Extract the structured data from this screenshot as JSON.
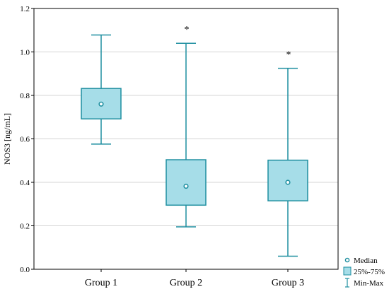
{
  "chart_data": {
    "type": "box",
    "ylabel": "NOS3 [ng/mL]",
    "xlabel": "",
    "title": "",
    "ylim": [
      0.0,
      1.2
    ],
    "y_ticks": [
      "0.0",
      "0.2",
      "0.4",
      "0.6",
      "0.8",
      "1.0",
      "1.2"
    ],
    "y_tick_values": [
      0.0,
      0.2,
      0.4,
      0.6,
      0.8,
      1.0,
      1.2
    ],
    "grid": "horizontal",
    "categories": [
      "Group 1",
      "Group 2",
      "Group 3"
    ],
    "boxes": [
      {
        "category": "Group 1",
        "min": 0.576,
        "q1": 0.692,
        "median": 0.76,
        "q3": 0.832,
        "max": 1.078,
        "annotation": ""
      },
      {
        "category": "Group 2",
        "min": 0.195,
        "q1": 0.295,
        "median": 0.382,
        "q3": 0.504,
        "max": 1.04,
        "annotation": "*"
      },
      {
        "category": "Group 3",
        "min": 0.06,
        "q1": 0.315,
        "median": 0.4,
        "q3": 0.502,
        "max": 0.925,
        "annotation": "*"
      }
    ],
    "legend": {
      "position": "bottom-right",
      "items": [
        {
          "label": "Median",
          "marker": "circle"
        },
        {
          "label": "25%-75%",
          "marker": "box"
        },
        {
          "label": "Min-Max",
          "marker": "whisker"
        }
      ]
    },
    "colors": {
      "box_fill": "#a6dde8",
      "stroke": "#1f8fa0",
      "grid": "#d4d4d4",
      "axis": "#000000"
    }
  }
}
